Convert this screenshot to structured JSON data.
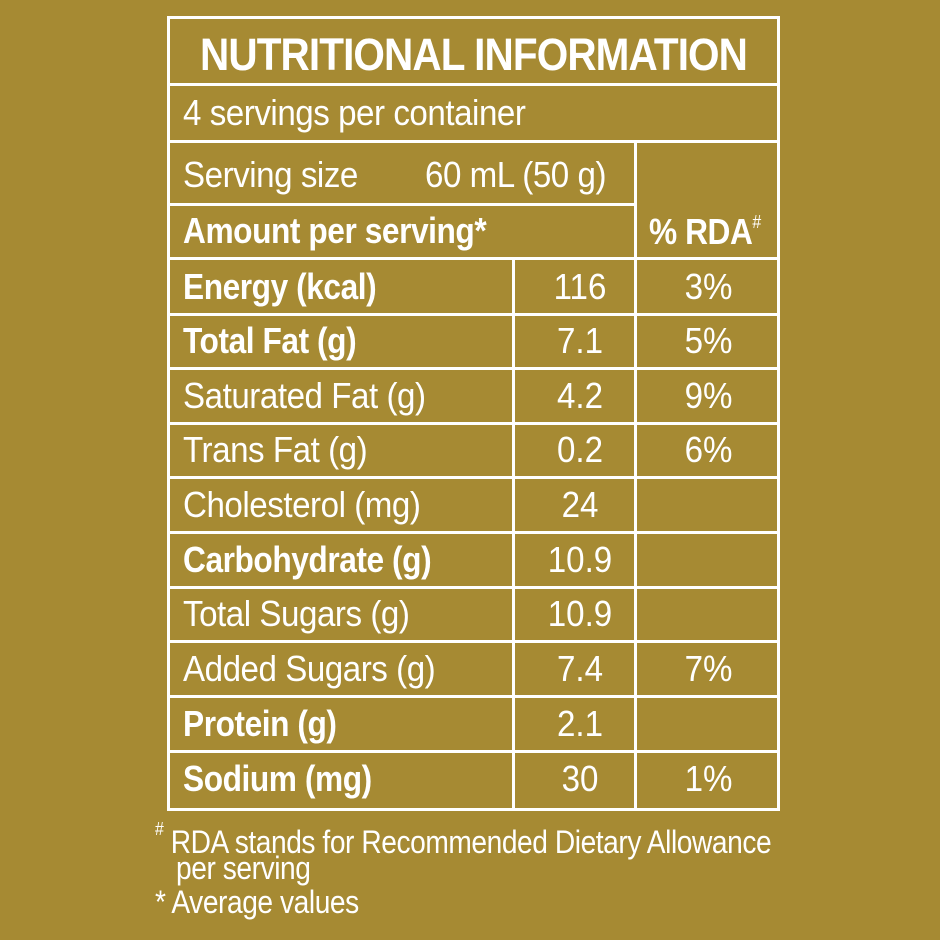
{
  "title": "NUTRITIONAL INFORMATION",
  "servings_per_container": "4 servings per container",
  "serving_size": {
    "label": "Serving size",
    "value": "60 mL (50 g)"
  },
  "header": {
    "amount_label": "Amount per serving",
    "amount_mark": "*",
    "rda_label": "% RDA",
    "rda_mark": "#"
  },
  "rows": [
    {
      "name": "Energy (kcal)",
      "amount": "116",
      "rda": "3%",
      "bold": true
    },
    {
      "name": "Total Fat (g)",
      "amount": "7.1",
      "rda": "5%",
      "bold": true
    },
    {
      "name": "Saturated Fat (g)",
      "amount": "4.2",
      "rda": "9%",
      "bold": false
    },
    {
      "name": "Trans Fat (g)",
      "amount": "0.2",
      "rda": "6%",
      "bold": false
    },
    {
      "name": "Cholesterol (mg)",
      "amount": "24",
      "rda": "",
      "bold": false
    },
    {
      "name": "Carbohydrate (g)",
      "amount": "10.9",
      "rda": "",
      "bold": true
    },
    {
      "name": "Total Sugars (g)",
      "amount": "10.9",
      "rda": "",
      "bold": false
    },
    {
      "name": "Added Sugars (g)",
      "amount": "7.4",
      "rda": "7%",
      "bold": false
    },
    {
      "name": "Protein (g)",
      "amount": "2.1",
      "rda": "",
      "bold": true
    },
    {
      "name": "Sodium (mg)",
      "amount": "30",
      "rda": "1%",
      "bold": true
    }
  ],
  "footnotes": {
    "rda_mark": "#",
    "rda_line1": "RDA stands for Recommended Dietary Allowance",
    "rda_line2": "per serving",
    "avg_mark": "*",
    "avg_text": "Average values"
  },
  "colors": {
    "background": "#A68A33",
    "foreground": "#ffffff"
  }
}
